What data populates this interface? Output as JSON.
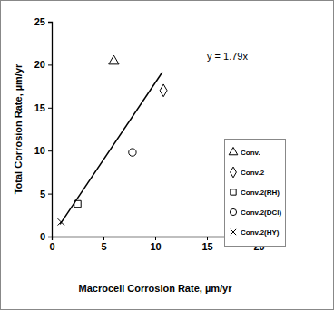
{
  "chart_data": {
    "type": "scatter",
    "x_label": "Macrocell Corrosion Rate, µm/yr",
    "y_label": "Total Corrosion Rate, µm/yr",
    "xlim": [
      0,
      20
    ],
    "ylim": [
      0,
      25
    ],
    "xticks": [
      0,
      5,
      10,
      15,
      20
    ],
    "yticks": [
      0,
      5,
      10,
      15,
      20,
      25
    ],
    "grid": false,
    "legend": "right",
    "series": [
      {
        "name": "Conv.",
        "color": "#000000",
        "marker": "triangle",
        "x": [
          6.0
        ],
        "values": [
          20.4
        ]
      },
      {
        "name": "Conv.2",
        "color": "#000000",
        "marker": "diamond",
        "x": [
          10.8
        ],
        "values": [
          17.0
        ]
      },
      {
        "name": "Conv.2(RH)",
        "color": "#000000",
        "marker": "square",
        "x": [
          2.5
        ],
        "values": [
          3.8
        ]
      },
      {
        "name": "Conv.2(DCl)",
        "color": "#000000",
        "marker": "circle",
        "x": [
          7.8
        ],
        "values": [
          9.8
        ]
      },
      {
        "name": "Conv.2(HY)",
        "color": "#000000",
        "marker": "x",
        "x": [
          0.9
        ],
        "values": [
          1.7
        ]
      },
      {
        "type": "line",
        "color": "#000000",
        "line_style": "solid",
        "x": [
          0.8,
          10.7
        ],
        "values": [
          1.43,
          19.15
        ]
      }
    ],
    "annotations": [
      {
        "text": "y = 1.79x"
      }
    ]
  }
}
